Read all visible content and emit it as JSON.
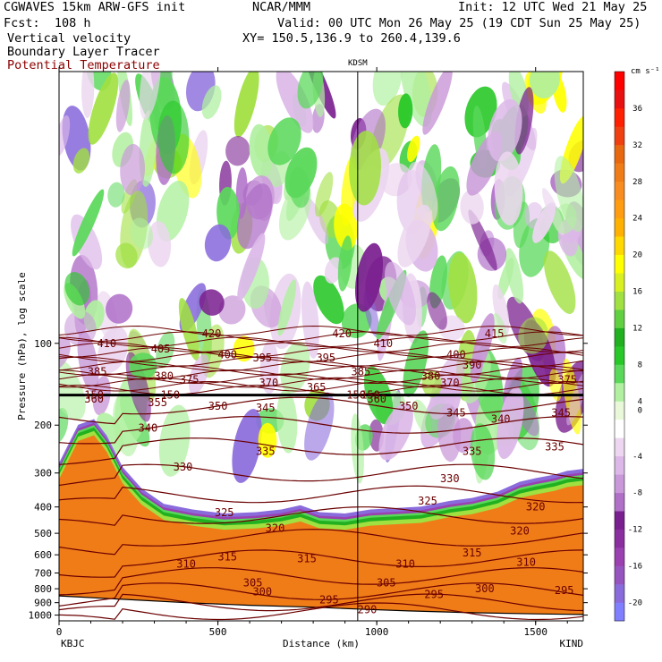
{
  "header": {
    "model": "CGWAVES 15km ARW-GFS init",
    "org": "NCAR/MMM",
    "init": "Init: 12 UTC Wed 21 May 25",
    "fcst": "Fcst:  108 h",
    "valid": "Valid: 00 UTC Mon 26 May 25 (19 CDT Sun 25 May 25)",
    "field1": "Vertical velocity",
    "xy": "XY= 150.5,136.9 to 260.4,139.6",
    "field2": "Boundary Layer Tracer",
    "field3": "Potential Temperature"
  },
  "colors": {
    "theta_line": "#6b0000",
    "field3_text": "#8b0000"
  },
  "chart_data": {
    "type": "heatmap",
    "title": "Vertical velocity",
    "xlabel": "Distance (km)",
    "ylabel": "Pressure (hPa), log scale",
    "x_range": [
      0,
      1650
    ],
    "x_ticks": [
      "0",
      "500",
      "1000",
      "1500"
    ],
    "y_range_hPa": [
      1050,
      10
    ],
    "y_scale": "log",
    "y_ticks": [
      "100",
      "200",
      "300",
      "400",
      "500",
      "600",
      "700",
      "800",
      "900",
      "1000"
    ],
    "left_station": "KBJC",
    "right_station": "KIND",
    "mid_station": "KDSM",
    "mid_station_km": 940,
    "colorbar": {
      "unit": "cm s⁻¹",
      "levels": [
        -22,
        -20,
        -18,
        -16,
        -14,
        -12,
        -10,
        -8,
        -6,
        -4,
        -2,
        2,
        4,
        6,
        8,
        10,
        12,
        14,
        16,
        18,
        20,
        22,
        24,
        26,
        28,
        30,
        32,
        34,
        36,
        38,
        40
      ],
      "labels": [
        "-20",
        "-16",
        "-12",
        "-8",
        "-4",
        "0",
        "4",
        "8",
        "12",
        "16",
        "20",
        "24",
        "28",
        "32",
        "36"
      ],
      "colors": [
        "#7f7fff",
        "#8a6bdc",
        "#9554c0",
        "#9a40b0",
        "#8b2fa0",
        "#7a1f8f",
        "#b070c8",
        "#c998d8",
        "#dcb8e8",
        "#ecd6f0",
        "#ffffff",
        "#e8f8d8",
        "#b0f0a0",
        "#5ad85a",
        "#28c828",
        "#20b020",
        "#60d040",
        "#a0e040",
        "#d8f020",
        "#ffff00",
        "#ffd800",
        "#ffb000",
        "#ff9c10",
        "#f88c20",
        "#f07c18",
        "#e86810",
        "#f04010",
        "#ff2000",
        "#e81010",
        "#ff0000"
      ]
    },
    "theta_labels": [
      "420",
      "420",
      "415",
      "410",
      "410",
      "405",
      "400",
      "400",
      "395",
      "395",
      "390",
      "385",
      "385",
      "380",
      "380",
      "375",
      "375",
      "370",
      "370",
      "365",
      "360",
      "360",
      "355",
      "350",
      "350",
      "345",
      "345",
      "345",
      "340",
      "340",
      "335",
      "335",
      "335",
      "330",
      "330",
      "325",
      "325",
      "320",
      "320",
      "320",
      "315",
      "315",
      "315",
      "310",
      "310",
      "310",
      "305",
      "305",
      "300",
      "300",
      "295",
      "295",
      "295",
      "290",
      "150",
      "150",
      "150",
      "150"
    ],
    "tropopause_hPa": 155
  }
}
